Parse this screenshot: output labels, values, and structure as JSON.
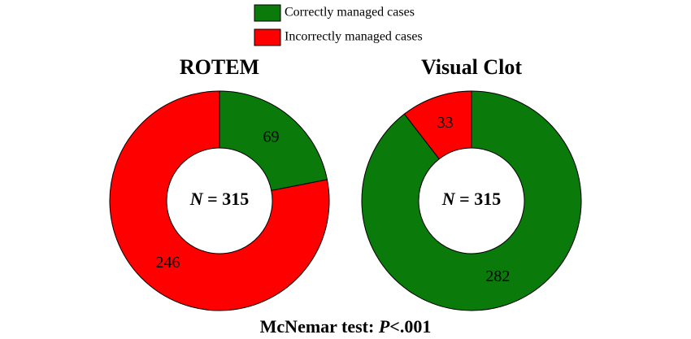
{
  "chart_data": [
    {
      "type": "donut",
      "title": "ROTEM",
      "categories": [
        "Correctly managed cases",
        "Incorrectly managed cases"
      ],
      "values": [
        69,
        246
      ],
      "colors": [
        "#0a7a0a",
        "#ff0000"
      ],
      "center_label": [
        "N",
        " = 315"
      ]
    },
    {
      "type": "donut",
      "title": "Visual Clot",
      "categories": [
        "Correctly managed cases",
        "Incorrectly managed cases"
      ],
      "values": [
        282,
        33
      ],
      "colors": [
        "#0a7a0a",
        "#ff0000"
      ],
      "center_label": [
        "N",
        " = 315"
      ]
    }
  ],
  "footer": [
    "McNemar test: ",
    "P",
    "<.001"
  ]
}
